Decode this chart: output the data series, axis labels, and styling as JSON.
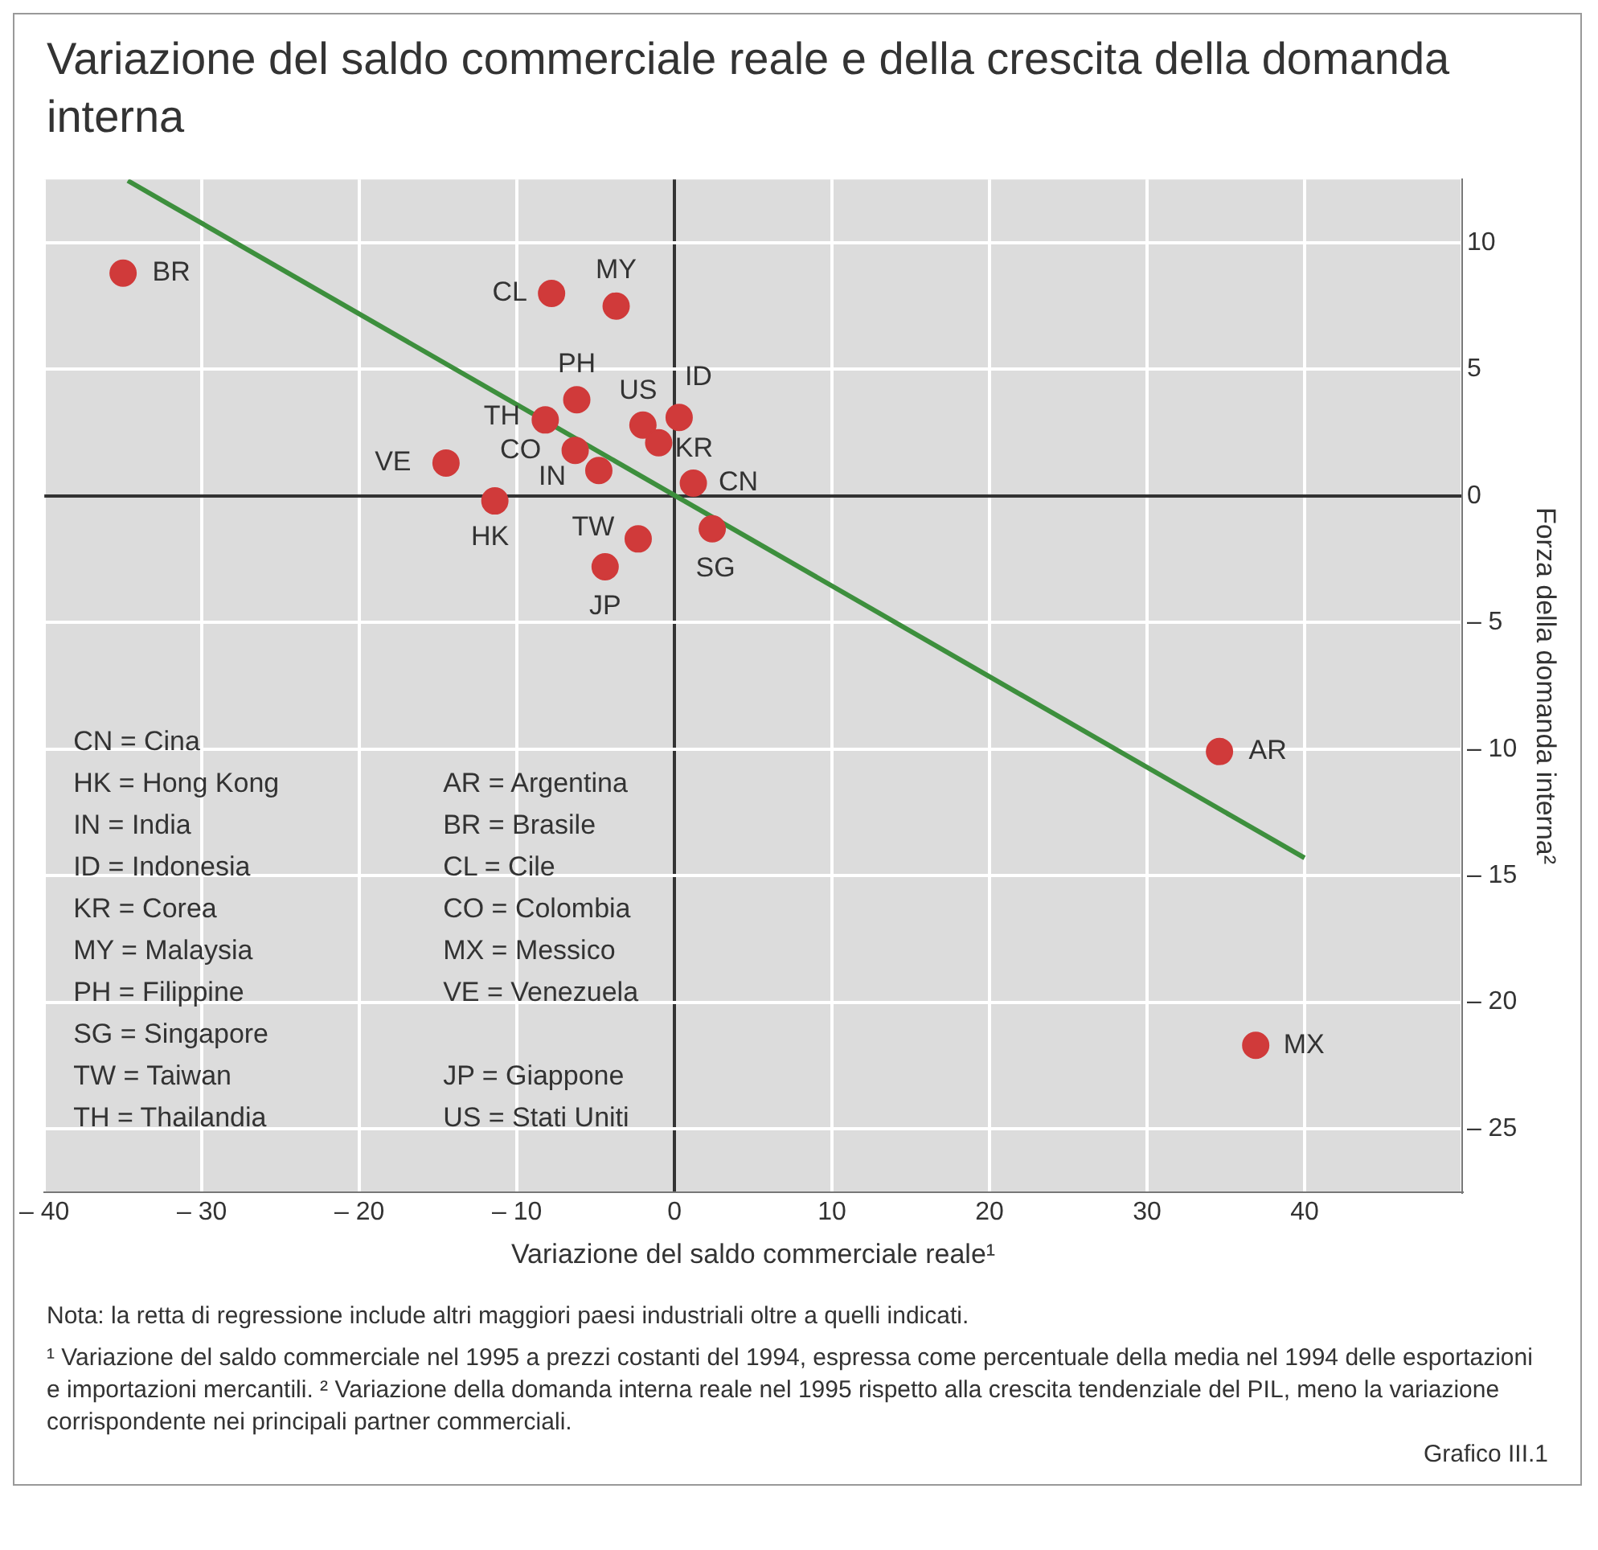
{
  "chart_data": {
    "type": "scatter",
    "title": "Variazione del saldo commerciale reale e della crescita della domanda interna",
    "xlabel": "Variazione del saldo commerciale reale¹",
    "ylabel": "Forza della domanda interna²",
    "xlim": [
      -40,
      50
    ],
    "xticks": [
      {
        "value": -40,
        "label": "– 40"
      },
      {
        "value": -30,
        "label": "– 30"
      },
      {
        "value": -20,
        "label": "– 20"
      },
      {
        "value": -10,
        "label": "– 10"
      },
      0,
      10,
      20,
      30,
      40,
      {
        "value": 50,
        "label": null
      }
    ],
    "ylim": [
      -27.5,
      12.5
    ],
    "yticks": [
      {
        "value": -25,
        "label": "– 25"
      },
      {
        "value": -20,
        "label": "– 20"
      },
      {
        "value": -15,
        "label": "– 15"
      },
      {
        "value": -10,
        "label": "– 10"
      },
      {
        "value": -5,
        "label": "– 5"
      },
      0,
      5,
      10
    ],
    "grid": true,
    "legend": false,
    "series": [
      {
        "type": "scatter",
        "marker": "circle",
        "color": "#d03a3a",
        "x": [
          -35.0,
          -7.8,
          -3.7,
          -6.2,
          -8.2,
          -2.0,
          0.3,
          -1.0,
          -6.3,
          -14.5,
          -4.8,
          1.2,
          -11.4,
          -2.3,
          2.4,
          -4.4,
          34.6,
          36.9
        ],
        "values": [
          8.8,
          8.0,
          7.5,
          3.8,
          3.0,
          2.8,
          3.1,
          2.1,
          1.8,
          1.3,
          1.0,
          0.5,
          -0.2,
          -1.7,
          -1.3,
          -2.8,
          -10.1,
          -21.7
        ]
      },
      {
        "type": "line",
        "color": "#3d8f3d",
        "x": [
          -34.7,
          40.0
        ],
        "values": [
          12.45,
          -14.3
        ]
      }
    ],
    "annotations": [
      {
        "text": "BR",
        "x": -35.0,
        "y": 8.8
      },
      {
        "text": "CL",
        "x": -7.8,
        "y": 8.0
      },
      {
        "text": "MY",
        "x": -3.7,
        "y": 7.5
      },
      {
        "text": "PH",
        "x": -6.2,
        "y": 3.8
      },
      {
        "text": "TH",
        "x": -8.2,
        "y": 3.0
      },
      {
        "text": "US",
        "x": -2.0,
        "y": 2.8
      },
      {
        "text": "ID",
        "x": 0.3,
        "y": 3.1
      },
      {
        "text": "KR",
        "x": -1.0,
        "y": 2.1
      },
      {
        "text": "CO",
        "x": -6.3,
        "y": 1.8
      },
      {
        "text": "VE",
        "x": -14.5,
        "y": 1.3
      },
      {
        "text": "IN",
        "x": -4.8,
        "y": 1.0
      },
      {
        "text": "CN",
        "x": 1.2,
        "y": 0.5
      },
      {
        "text": "HK",
        "x": -11.4,
        "y": -0.2
      },
      {
        "text": "TW",
        "x": -2.3,
        "y": -1.7
      },
      {
        "text": "SG",
        "x": 2.4,
        "y": -1.3
      },
      {
        "text": "JP",
        "x": -4.4,
        "y": -2.8
      },
      {
        "text": "AR",
        "x": 34.6,
        "y": -10.1
      },
      {
        "text": "MX",
        "x": 36.9,
        "y": -21.7
      },
      "CN = Cina",
      "HK = Hong Kong",
      "IN = India",
      "ID = Indonesia",
      "KR = Corea",
      "MY = Malaysia",
      "PH = Filippine",
      "SG = Singapore",
      "TW = Taiwan",
      "TH = Thailandia",
      "AR = Argentina",
      "BR = Brasile",
      "CL = Cile",
      "CO = Colombia",
      "MX = Messico",
      "VE = Venezuela",
      "JP = Giappone",
      "US = Stati Uniti",
      "Nota: la retta di regressione include altri maggiori paesi industriali oltre a quelli indicati.",
      "¹ Variazione del saldo commerciale nel 1995 a prezzi costanti del 1994, espressa come percentuale della media nel 1994 delle esportazioni e importazioni mercantili. ² Variazione della domanda interna reale nel 1995 rispetto alla crescita tendenziale del PIL, meno la variazione corrispondente nei principali partner commerciali.",
      "Grafico III.1"
    ]
  }
}
